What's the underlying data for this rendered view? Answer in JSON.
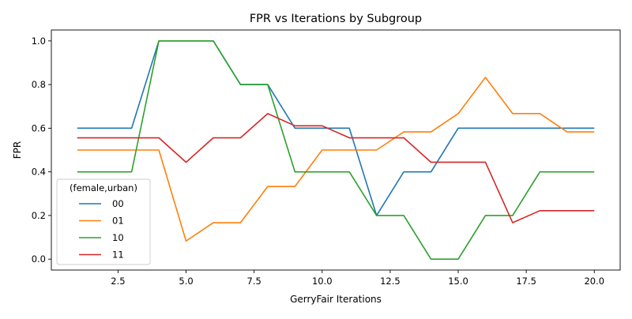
{
  "chart_data": {
    "type": "line",
    "title": "FPR vs Iterations by Subgroup",
    "xlabel": "GerryFair Iterations",
    "ylabel": "FPR",
    "xlim": [
      0.05,
      20.95
    ],
    "ylim": [
      -0.05,
      1.05
    ],
    "xticks": [
      2.5,
      5.0,
      7.5,
      10.0,
      12.5,
      15.0,
      17.5,
      20.0
    ],
    "xtick_labels": [
      "2.5",
      "5.0",
      "7.5",
      "10.0",
      "12.5",
      "15.0",
      "17.5",
      "20.0"
    ],
    "yticks": [
      0.0,
      0.2,
      0.4,
      0.6,
      0.8,
      1.0
    ],
    "ytick_labels": [
      "0.0",
      "0.2",
      "0.4",
      "0.6",
      "0.8",
      "1.0"
    ],
    "grid": false,
    "legend": {
      "title": "(female,urban)",
      "placement": "lower-left"
    },
    "x": [
      1,
      2,
      3,
      4,
      5,
      6,
      7,
      8,
      9,
      10,
      11,
      12,
      13,
      14,
      15,
      16,
      17,
      18,
      19,
      20
    ],
    "series": [
      {
        "name": "00",
        "color": "#1f77b4",
        "values": [
          0.6,
          0.6,
          0.6,
          1.0,
          1.0,
          1.0,
          0.8,
          0.8,
          0.6,
          0.6,
          0.6,
          0.2,
          0.4,
          0.4,
          0.6,
          0.6,
          0.6,
          0.6,
          0.6,
          0.6
        ]
      },
      {
        "name": "01",
        "color": "#ff7f0e",
        "values": [
          0.5,
          0.5,
          0.5,
          0.5,
          0.083,
          0.167,
          0.167,
          0.333,
          0.333,
          0.5,
          0.5,
          0.5,
          0.583,
          0.583,
          0.667,
          0.833,
          0.667,
          0.667,
          0.583,
          0.583
        ]
      },
      {
        "name": "10",
        "color": "#2ca02c",
        "values": [
          0.4,
          0.4,
          0.4,
          1.0,
          1.0,
          1.0,
          0.8,
          0.8,
          0.4,
          0.4,
          0.4,
          0.2,
          0.2,
          0.0,
          0.0,
          0.2,
          0.2,
          0.4,
          0.4,
          0.4
        ]
      },
      {
        "name": "11",
        "color": "#d62728",
        "values": [
          0.556,
          0.556,
          0.556,
          0.556,
          0.444,
          0.556,
          0.556,
          0.667,
          0.611,
          0.611,
          0.556,
          0.556,
          0.556,
          0.444,
          0.444,
          0.444,
          0.167,
          0.222,
          0.222,
          0.222
        ]
      }
    ]
  }
}
